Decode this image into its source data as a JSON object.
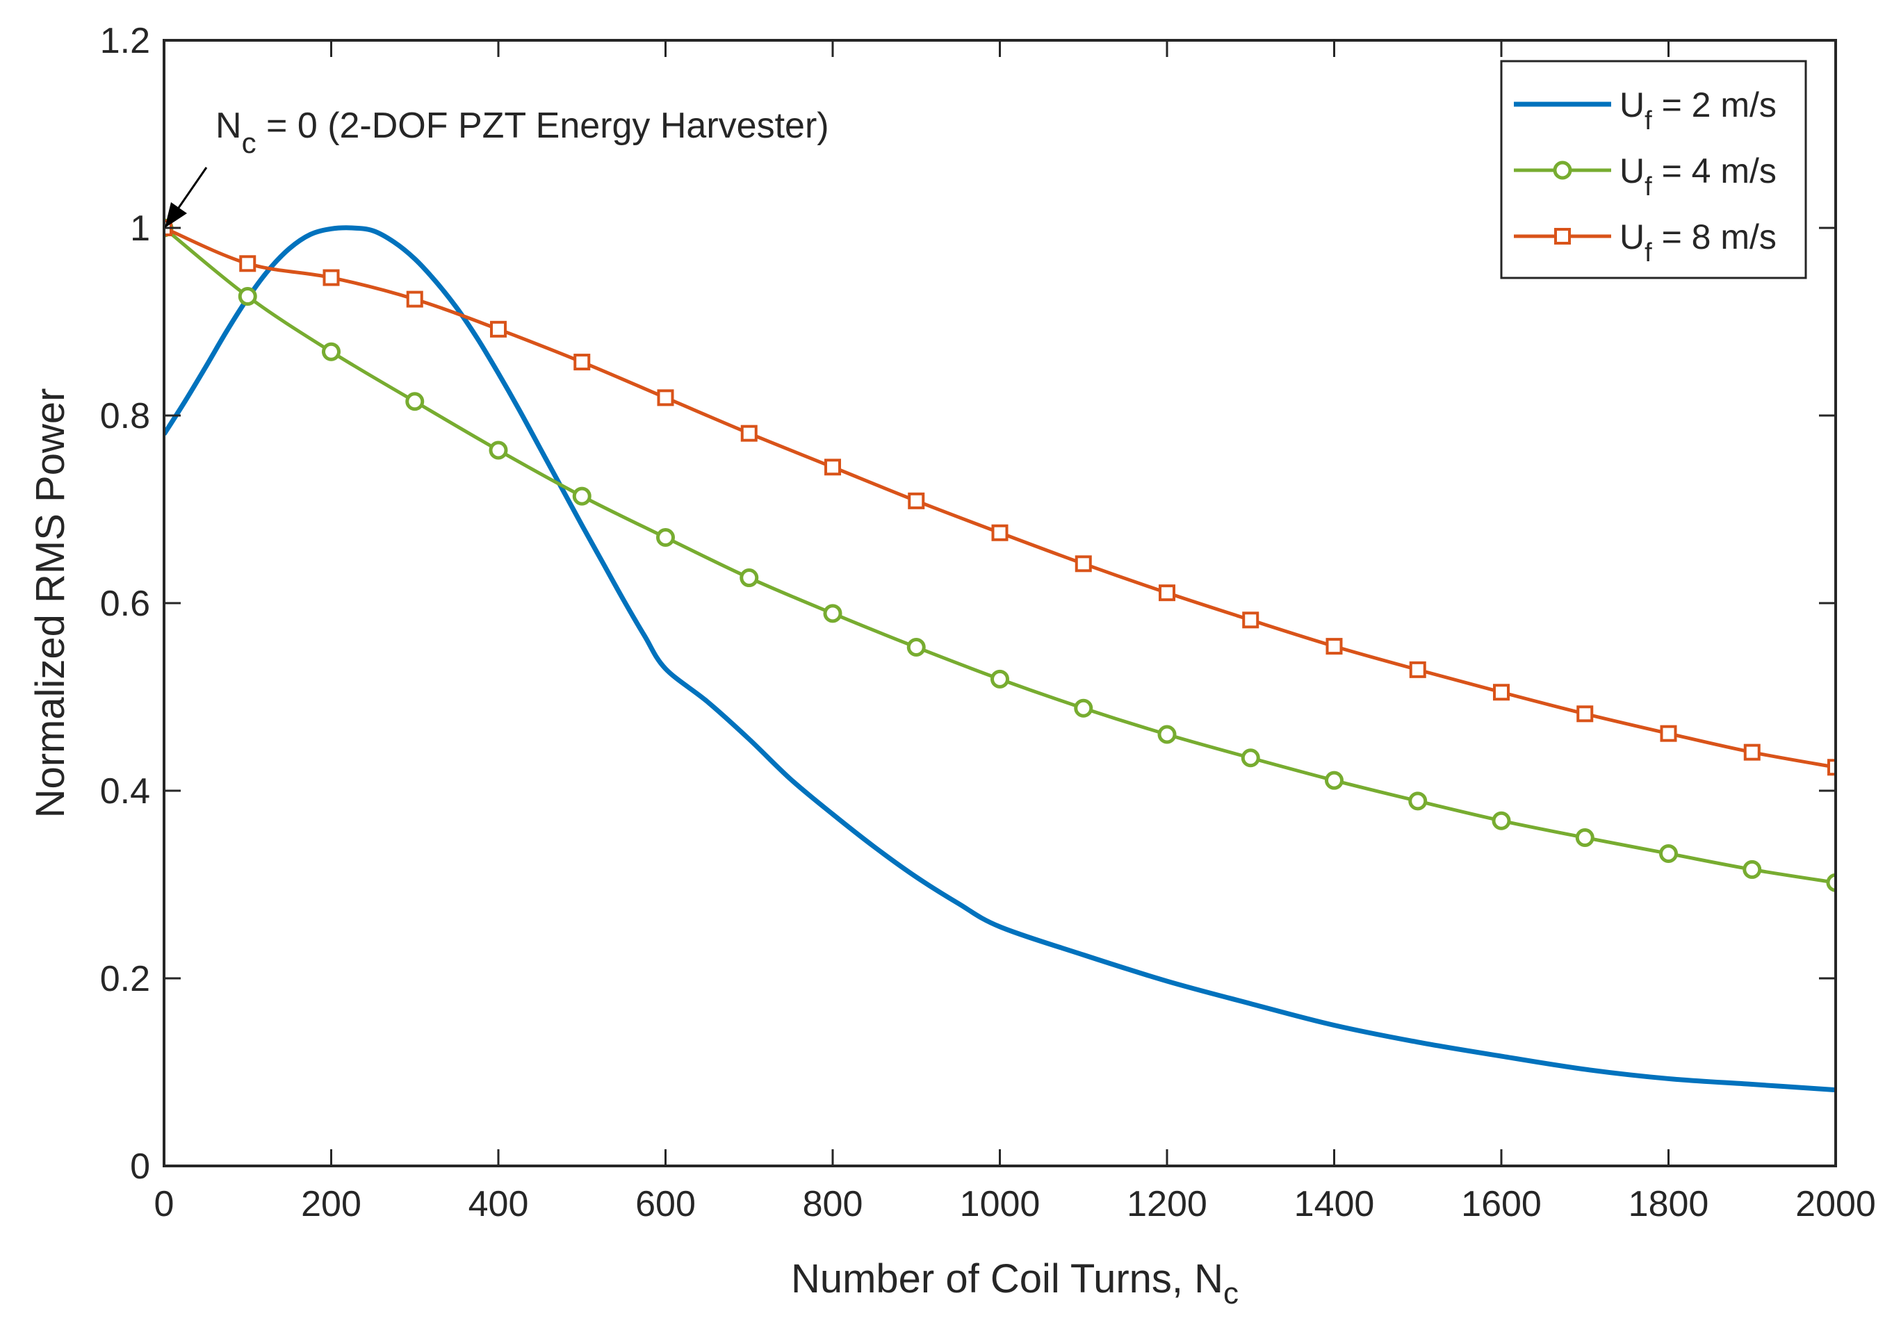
{
  "chart_data": {
    "type": "line",
    "title": "",
    "xlabel": "Number of Coil Turns, N",
    "xlabel_sub": "c",
    "ylabel": "Normalized RMS Power",
    "xlim": [
      0,
      2000
    ],
    "ylim": [
      0,
      1.2
    ],
    "x_ticks": [
      0,
      200,
      400,
      600,
      800,
      1000,
      1200,
      1400,
      1600,
      1800,
      2000
    ],
    "y_ticks": [
      0,
      0.2,
      0.4,
      0.6,
      0.8,
      1,
      1.2
    ],
    "x_tick_labels": [
      "0",
      "200",
      "400",
      "600",
      "800",
      "1000",
      "1200",
      "1400",
      "1600",
      "1800",
      "2000"
    ],
    "y_tick_labels": [
      "0",
      "0.2",
      "0.4",
      "0.6",
      "0.8",
      "1",
      "1.2"
    ],
    "grid": false,
    "legend_position": "top-right",
    "series": [
      {
        "name": "U_f = 2 m/s",
        "label_main": "U",
        "label_sub": "f",
        "label_rest": " = 2 m/s",
        "color": "#0072BD",
        "marker": "none",
        "x": [
          0,
          25,
          50,
          75,
          100,
          125,
          150,
          175,
          200,
          225,
          250,
          275,
          300,
          325,
          350,
          375,
          400,
          425,
          450,
          475,
          500,
          525,
          550,
          575,
          600,
          650,
          700,
          750,
          800,
          850,
          900,
          950,
          1000,
          1100,
          1200,
          1300,
          1400,
          1500,
          1600,
          1700,
          1800,
          1900,
          2000
        ],
        "y": [
          0.78,
          0.815,
          0.852,
          0.89,
          0.925,
          0.955,
          0.978,
          0.993,
          0.999,
          1.0,
          0.997,
          0.985,
          0.967,
          0.943,
          0.915,
          0.882,
          0.845,
          0.806,
          0.765,
          0.724,
          0.683,
          0.643,
          0.603,
          0.565,
          0.53,
          0.495,
          0.455,
          0.412,
          0.375,
          0.34,
          0.308,
          0.28,
          0.255,
          0.225,
          0.197,
          0.173,
          0.15,
          0.132,
          0.117,
          0.103,
          0.093,
          0.087,
          0.081
        ]
      },
      {
        "name": "U_f = 4 m/s",
        "label_main": "U",
        "label_sub": "f",
        "label_rest": " = 4 m/s",
        "color": "#77AC30",
        "marker": "circle",
        "x": [
          0,
          100,
          200,
          300,
          400,
          500,
          600,
          700,
          800,
          900,
          1000,
          1100,
          1200,
          1300,
          1400,
          1500,
          1600,
          1700,
          1800,
          1900,
          2000
        ],
        "y": [
          1.0,
          0.927,
          0.868,
          0.815,
          0.763,
          0.714,
          0.67,
          0.627,
          0.589,
          0.553,
          0.519,
          0.488,
          0.46,
          0.435,
          0.411,
          0.389,
          0.368,
          0.35,
          0.333,
          0.316,
          0.302
        ]
      },
      {
        "name": "U_f = 8 m/s",
        "label_main": "U",
        "label_sub": "f",
        "label_rest": " = 8 m/s",
        "color": "#D95319",
        "marker": "square",
        "x": [
          0,
          100,
          200,
          300,
          400,
          500,
          600,
          700,
          800,
          900,
          1000,
          1100,
          1200,
          1300,
          1400,
          1500,
          1600,
          1700,
          1800,
          1900,
          2000
        ],
        "y": [
          1.0,
          0.962,
          0.947,
          0.924,
          0.892,
          0.857,
          0.819,
          0.781,
          0.745,
          0.709,
          0.675,
          0.642,
          0.611,
          0.582,
          0.554,
          0.529,
          0.505,
          0.482,
          0.461,
          0.441,
          0.425
        ]
      }
    ],
    "annotations": [
      {
        "text_main": "N",
        "text_sub": "c",
        "text_rest": " = 0 (2-DOF PZT Energy Harvester)",
        "arrow_to": [
          0,
          1.0
        ]
      }
    ]
  }
}
